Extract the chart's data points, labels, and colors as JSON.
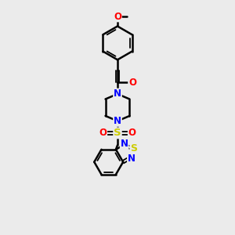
{
  "background_color": "#ebebeb",
  "bond_color": "#000000",
  "atom_colors": {
    "N": "#0000ff",
    "O": "#ff0000",
    "S": "#cccc00",
    "C": "#000000"
  },
  "figsize": [
    3.0,
    3.0
  ],
  "dpi": 100
}
